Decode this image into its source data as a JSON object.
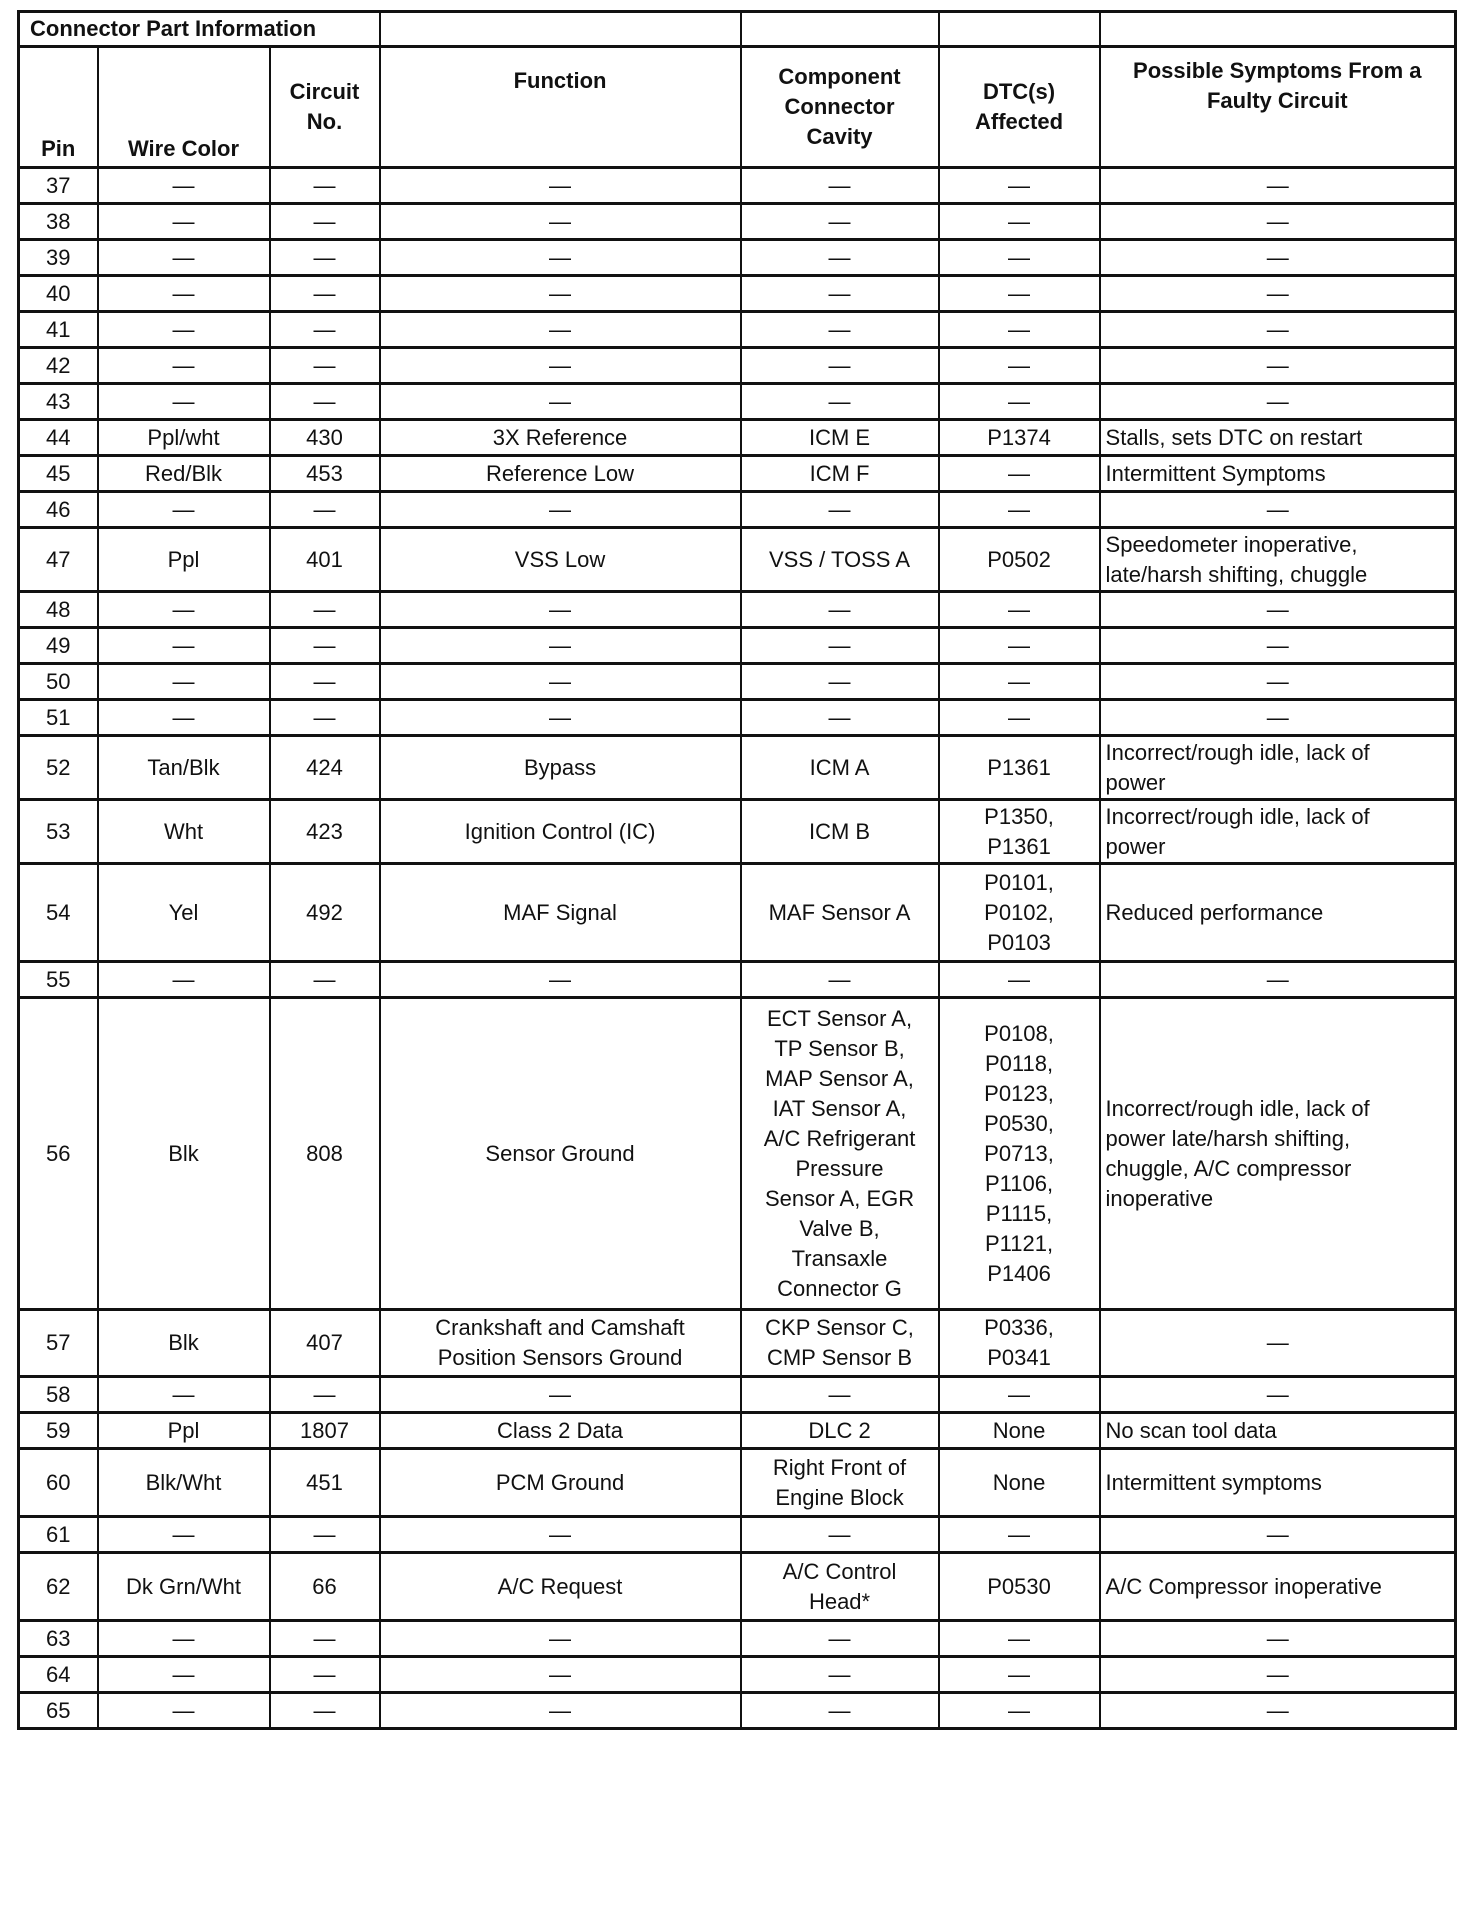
{
  "section_title": "Connector Part Information",
  "headers": {
    "pin": "Pin",
    "wire_color": "Wire Color",
    "circuit_no": "Circuit\nNo.",
    "function": "Function",
    "cavity": "Component\nConnector\nCavity",
    "dtc": "DTC(s)\nAffected",
    "symptoms": "Possible Symptoms From a\nFaulty Circuit"
  },
  "rows": [
    {
      "pin": "37",
      "wire": "—",
      "circuit": "—",
      "function": "—",
      "cavity": "—",
      "dtc": "—",
      "symptoms": "—"
    },
    {
      "pin": "38",
      "wire": "—",
      "circuit": "—",
      "function": "—",
      "cavity": "—",
      "dtc": "—",
      "symptoms": "—"
    },
    {
      "pin": "39",
      "wire": "—",
      "circuit": "—",
      "function": "—",
      "cavity": "—",
      "dtc": "—",
      "symptoms": "—"
    },
    {
      "pin": "40",
      "wire": "—",
      "circuit": "—",
      "function": "—",
      "cavity": "—",
      "dtc": "—",
      "symptoms": "—"
    },
    {
      "pin": "41",
      "wire": "—",
      "circuit": "—",
      "function": "—",
      "cavity": "—",
      "dtc": "—",
      "symptoms": "—"
    },
    {
      "pin": "42",
      "wire": "—",
      "circuit": "—",
      "function": "—",
      "cavity": "—",
      "dtc": "—",
      "symptoms": "—"
    },
    {
      "pin": "43",
      "wire": "—",
      "circuit": "—",
      "function": "—",
      "cavity": "—",
      "dtc": "—",
      "symptoms": "—"
    },
    {
      "pin": "44",
      "wire": "Ppl/wht",
      "circuit": "430",
      "function": "3X Reference",
      "cavity": "ICM E",
      "dtc": "P1374",
      "symptoms": "Stalls, sets DTC on restart"
    },
    {
      "pin": "45",
      "wire": "Red/Blk",
      "circuit": "453",
      "function": "Reference Low",
      "cavity": "ICM F",
      "dtc": "—",
      "symptoms": "Intermittent Symptoms"
    },
    {
      "pin": "46",
      "wire": "—",
      "circuit": "—",
      "function": "—",
      "cavity": "—",
      "dtc": "—",
      "symptoms": "—"
    },
    {
      "pin": "47",
      "wire": "Ppl",
      "circuit": "401",
      "function": "VSS Low",
      "cavity": "VSS / TOSS A",
      "dtc": "P0502",
      "symptoms": "Speedometer inoperative,\nlate/harsh shifting, chuggle"
    },
    {
      "pin": "48",
      "wire": "—",
      "circuit": "—",
      "function": "—",
      "cavity": "—",
      "dtc": "—",
      "symptoms": "—"
    },
    {
      "pin": "49",
      "wire": "—",
      "circuit": "—",
      "function": "—",
      "cavity": "—",
      "dtc": "—",
      "symptoms": "—"
    },
    {
      "pin": "50",
      "wire": "—",
      "circuit": "—",
      "function": "—",
      "cavity": "—",
      "dtc": "—",
      "symptoms": "—"
    },
    {
      "pin": "51",
      "wire": "—",
      "circuit": "—",
      "function": "—",
      "cavity": "—",
      "dtc": "—",
      "symptoms": "—"
    },
    {
      "pin": "52",
      "wire": "Tan/Blk",
      "circuit": "424",
      "function": "Bypass",
      "cavity": "ICM A",
      "dtc": "P1361",
      "symptoms": "Incorrect/rough idle, lack of\npower"
    },
    {
      "pin": "53",
      "wire": "Wht",
      "circuit": "423",
      "function": "Ignition Control (IC)",
      "cavity": "ICM B",
      "dtc": "P1350,\nP1361",
      "symptoms": "Incorrect/rough idle, lack of\npower"
    },
    {
      "pin": "54",
      "wire": "Yel",
      "circuit": "492",
      "function": "MAF Signal",
      "cavity": "MAF Sensor A",
      "dtc": "P0101,\nP0102,\nP0103",
      "symptoms": "Reduced performance"
    },
    {
      "pin": "55",
      "wire": "—",
      "circuit": "—",
      "function": "—",
      "cavity": "—",
      "dtc": "—",
      "symptoms": "—"
    },
    {
      "pin": "56",
      "wire": "Blk",
      "circuit": "808",
      "function": "Sensor Ground",
      "cavity": "ECT Sensor A,\nTP Sensor B,\nMAP Sensor A,\nIAT Sensor A,\nA/C Refrigerant\nPressure\nSensor A, EGR\nValve B,\nTransaxle\nConnector G",
      "dtc": "P0108,\nP0118,\nP0123,\nP0530,\nP0713,\nP1106,\nP1115,\nP1121,\nP1406",
      "symptoms": "Incorrect/rough idle, lack of\npower late/harsh shifting,\nchuggle, A/C compressor\ninoperative"
    },
    {
      "pin": "57",
      "wire": "Blk",
      "circuit": "407",
      "function": "Crankshaft and Camshaft\nPosition Sensors Ground",
      "cavity": "CKP Sensor C,\nCMP Sensor B",
      "dtc": "P0336,\nP0341",
      "symptoms": "—"
    },
    {
      "pin": "58",
      "wire": "—",
      "circuit": "—",
      "function": "—",
      "cavity": "—",
      "dtc": "—",
      "symptoms": "—"
    },
    {
      "pin": "59",
      "wire": "Ppl",
      "circuit": "1807",
      "function": "Class 2 Data",
      "cavity": "DLC 2",
      "dtc": "None",
      "symptoms": "No scan tool data"
    },
    {
      "pin": "60",
      "wire": "Blk/Wht",
      "circuit": "451",
      "function": "PCM Ground",
      "cavity": "Right Front of\nEngine Block",
      "dtc": "None",
      "symptoms": "Intermittent symptoms"
    },
    {
      "pin": "61",
      "wire": "—",
      "circuit": "—",
      "function": "—",
      "cavity": "—",
      "dtc": "—",
      "symptoms": "—"
    },
    {
      "pin": "62",
      "wire": "Dk Grn/Wht",
      "circuit": "66",
      "function": "A/C Request",
      "cavity": "A/C Control\nHead*",
      "dtc": "P0530",
      "symptoms": "A/C Compressor inoperative"
    },
    {
      "pin": "63",
      "wire": "—",
      "circuit": "—",
      "function": "—",
      "cavity": "—",
      "dtc": "—",
      "symptoms": "—"
    },
    {
      "pin": "64",
      "wire": "—",
      "circuit": "—",
      "function": "—",
      "cavity": "—",
      "dtc": "—",
      "symptoms": "—"
    },
    {
      "pin": "65",
      "wire": "—",
      "circuit": "—",
      "function": "—",
      "cavity": "—",
      "dtc": "—",
      "symptoms": "—"
    }
  ]
}
